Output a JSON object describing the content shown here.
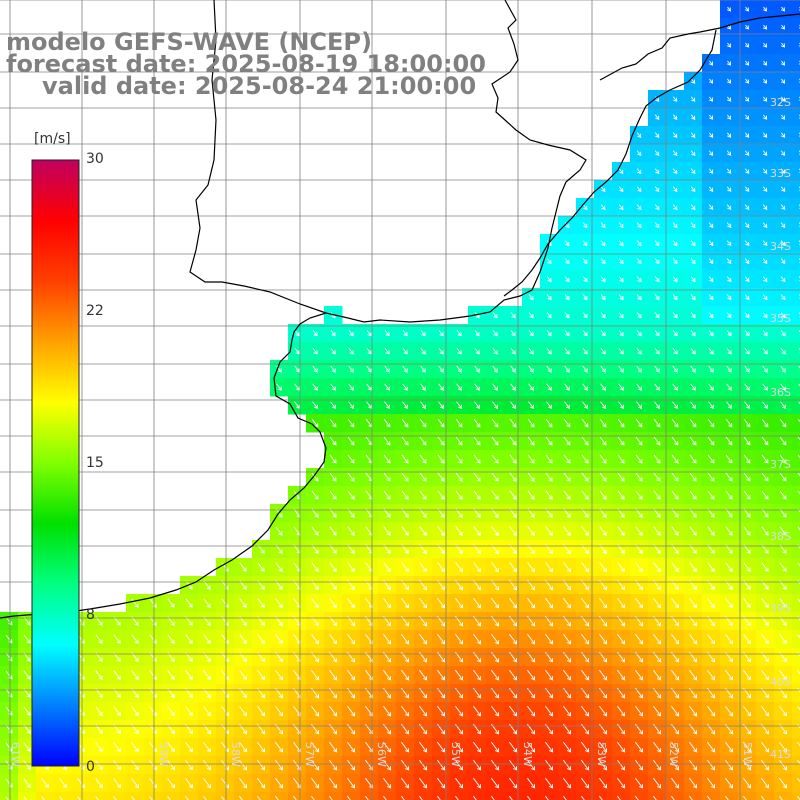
{
  "title": {
    "line1": "modelo GEFS-WAVE (NCEP)",
    "line2": "forecast date: 2025-08-19 18:00:00",
    "line3": "valid date: 2025-08-24 21:00:00"
  },
  "colorbar": {
    "unit": "[m/s]",
    "ticks": [
      "30",
      "22",
      "15",
      "8",
      "0"
    ],
    "tick_values": [
      30,
      22,
      15,
      8,
      0
    ],
    "min": 0,
    "max": 30,
    "colors": [
      "#0000ff",
      "#0080ff",
      "#00ffff",
      "#00ff80",
      "#00e000",
      "#80ff00",
      "#ffff00",
      "#ffa000",
      "#ff4000",
      "#ff0000",
      "#c00060"
    ]
  },
  "map": {
    "lon_labels": [
      "61W",
      "59W",
      "58W",
      "57W",
      "56W",
      "55W",
      "54W",
      "53W",
      "52W",
      "51W"
    ],
    "lat_labels": [
      "32S",
      "33S",
      "34S",
      "35S",
      "36S",
      "37S",
      "38S",
      "39S",
      "40S",
      "41S"
    ],
    "land_color": "#ffffff",
    "grid_color": "#808080",
    "coast_color": "#000000",
    "arrow_color": "#ffffff",
    "arrow_direction": "southeast"
  }
}
